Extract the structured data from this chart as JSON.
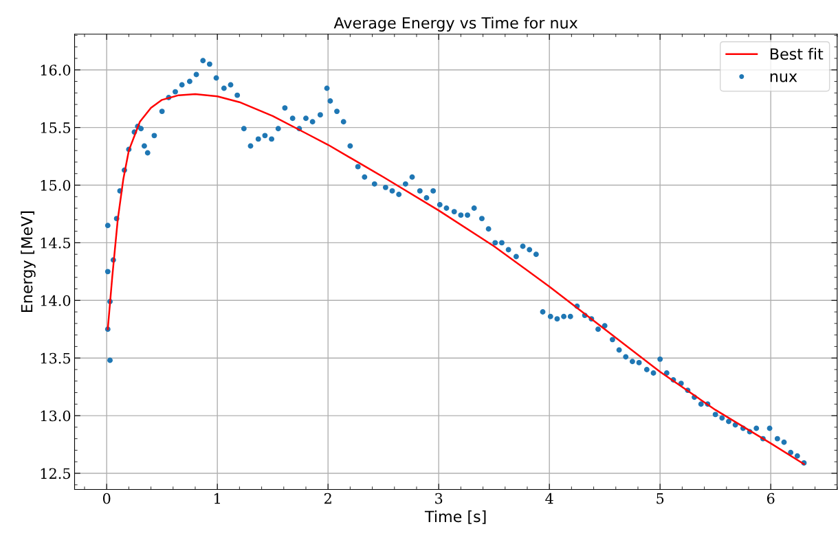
{
  "chart_data": {
    "type": "scatter",
    "title": "Average Energy vs Time for nux",
    "xlabel": "Time [s]",
    "ylabel": "Energy [MeV]",
    "xlim": [
      -0.29,
      6.6
    ],
    "ylim": [
      12.36,
      16.31
    ],
    "xticks": [
      0,
      1,
      2,
      3,
      4,
      5,
      6
    ],
    "yticks": [
      12.5,
      {
        "value": 13,
        "label": "13.0"
      },
      13.5,
      {
        "value": 14,
        "label": "14.0"
      },
      14.5,
      {
        "value": 15,
        "label": "15.0"
      },
      15.5,
      {
        "value": 16,
        "label": "16.0"
      }
    ],
    "grid": true,
    "legend": "top right",
    "marker": "circle",
    "series": [
      {
        "name": "Best fit",
        "type": "line",
        "color": "#ff0000",
        "marker": "none",
        "line_style": "solid",
        "x": [
          0.01,
          0.05,
          0.1,
          0.15,
          0.2,
          0.3,
          0.4,
          0.5,
          0.65,
          0.8,
          1.0,
          1.2,
          1.5,
          1.8,
          2.0,
          2.5,
          3.0,
          3.5,
          4.0,
          4.5,
          5.0,
          5.5,
          6.0,
          6.3
        ],
        "values": [
          13.75,
          14.2,
          14.7,
          15.05,
          15.3,
          15.55,
          15.67,
          15.74,
          15.78,
          15.79,
          15.77,
          15.72,
          15.6,
          15.45,
          15.35,
          15.07,
          14.78,
          14.47,
          14.12,
          13.75,
          13.38,
          13.05,
          12.76,
          12.58
        ]
      },
      {
        "name": "nux",
        "color": "#1f77b4",
        "x": [
          0.01,
          0.01,
          0.03,
          0.01,
          0.03,
          0.06,
          0.09,
          0.12,
          0.16,
          0.2,
          0.25,
          0.28,
          0.31,
          0.34,
          0.37,
          0.43,
          0.5,
          0.56,
          0.62,
          0.68,
          0.75,
          0.81,
          0.87,
          0.93,
          0.99,
          1.06,
          1.12,
          1.18,
          1.24,
          1.3,
          1.37,
          1.43,
          1.49,
          1.55,
          1.61,
          1.68,
          1.74,
          1.8,
          1.86,
          1.93,
          1.99,
          2.02,
          2.08,
          2.14,
          2.2,
          2.27,
          2.33,
          2.42,
          2.52,
          2.58,
          2.64,
          2.7,
          2.76,
          2.83,
          2.89,
          2.95,
          3.01,
          3.07,
          3.14,
          3.2,
          3.26,
          3.32,
          3.39,
          3.45,
          3.51,
          3.57,
          3.63,
          3.7,
          3.76,
          3.82,
          3.88,
          3.94,
          4.01,
          4.07,
          4.13,
          4.19,
          4.25,
          4.32,
          4.38,
          4.44,
          4.5,
          4.57,
          4.63,
          4.69,
          4.75,
          4.81,
          4.88,
          4.94,
          5.0,
          5.06,
          5.12,
          5.19,
          5.25,
          5.31,
          5.37,
          5.43,
          5.5,
          5.56,
          5.62,
          5.68,
          5.75,
          5.81,
          5.87,
          5.93,
          5.99,
          6.06,
          6.12,
          6.18,
          6.24,
          6.3
        ],
        "values": [
          14.65,
          14.25,
          13.48,
          13.75,
          13.99,
          14.35,
          14.71,
          14.95,
          15.13,
          15.31,
          15.46,
          15.51,
          15.49,
          15.34,
          15.28,
          15.43,
          15.64,
          15.76,
          15.81,
          15.87,
          15.9,
          15.96,
          16.08,
          16.05,
          15.93,
          15.84,
          15.87,
          15.78,
          15.49,
          15.34,
          15.4,
          15.43,
          15.4,
          15.49,
          15.67,
          15.58,
          15.49,
          15.58,
          15.55,
          15.61,
          15.84,
          15.73,
          15.64,
          15.55,
          15.34,
          15.16,
          15.07,
          15.01,
          14.98,
          14.95,
          14.92,
          15.01,
          15.07,
          14.95,
          14.89,
          14.95,
          14.83,
          14.8,
          14.77,
          14.74,
          14.74,
          14.8,
          14.71,
          14.62,
          14.5,
          14.5,
          14.44,
          14.38,
          14.47,
          14.44,
          14.4,
          13.9,
          13.86,
          13.84,
          13.86,
          13.86,
          13.95,
          13.87,
          13.84,
          13.75,
          13.78,
          13.66,
          13.57,
          13.51,
          13.47,
          13.46,
          13.4,
          13.37,
          13.49,
          13.37,
          13.31,
          13.28,
          13.22,
          13.16,
          13.1,
          13.1,
          13.01,
          12.98,
          12.95,
          12.92,
          12.89,
          12.86,
          12.89,
          12.8,
          12.89,
          12.8,
          12.77,
          12.68,
          12.65,
          12.59
        ]
      }
    ]
  }
}
